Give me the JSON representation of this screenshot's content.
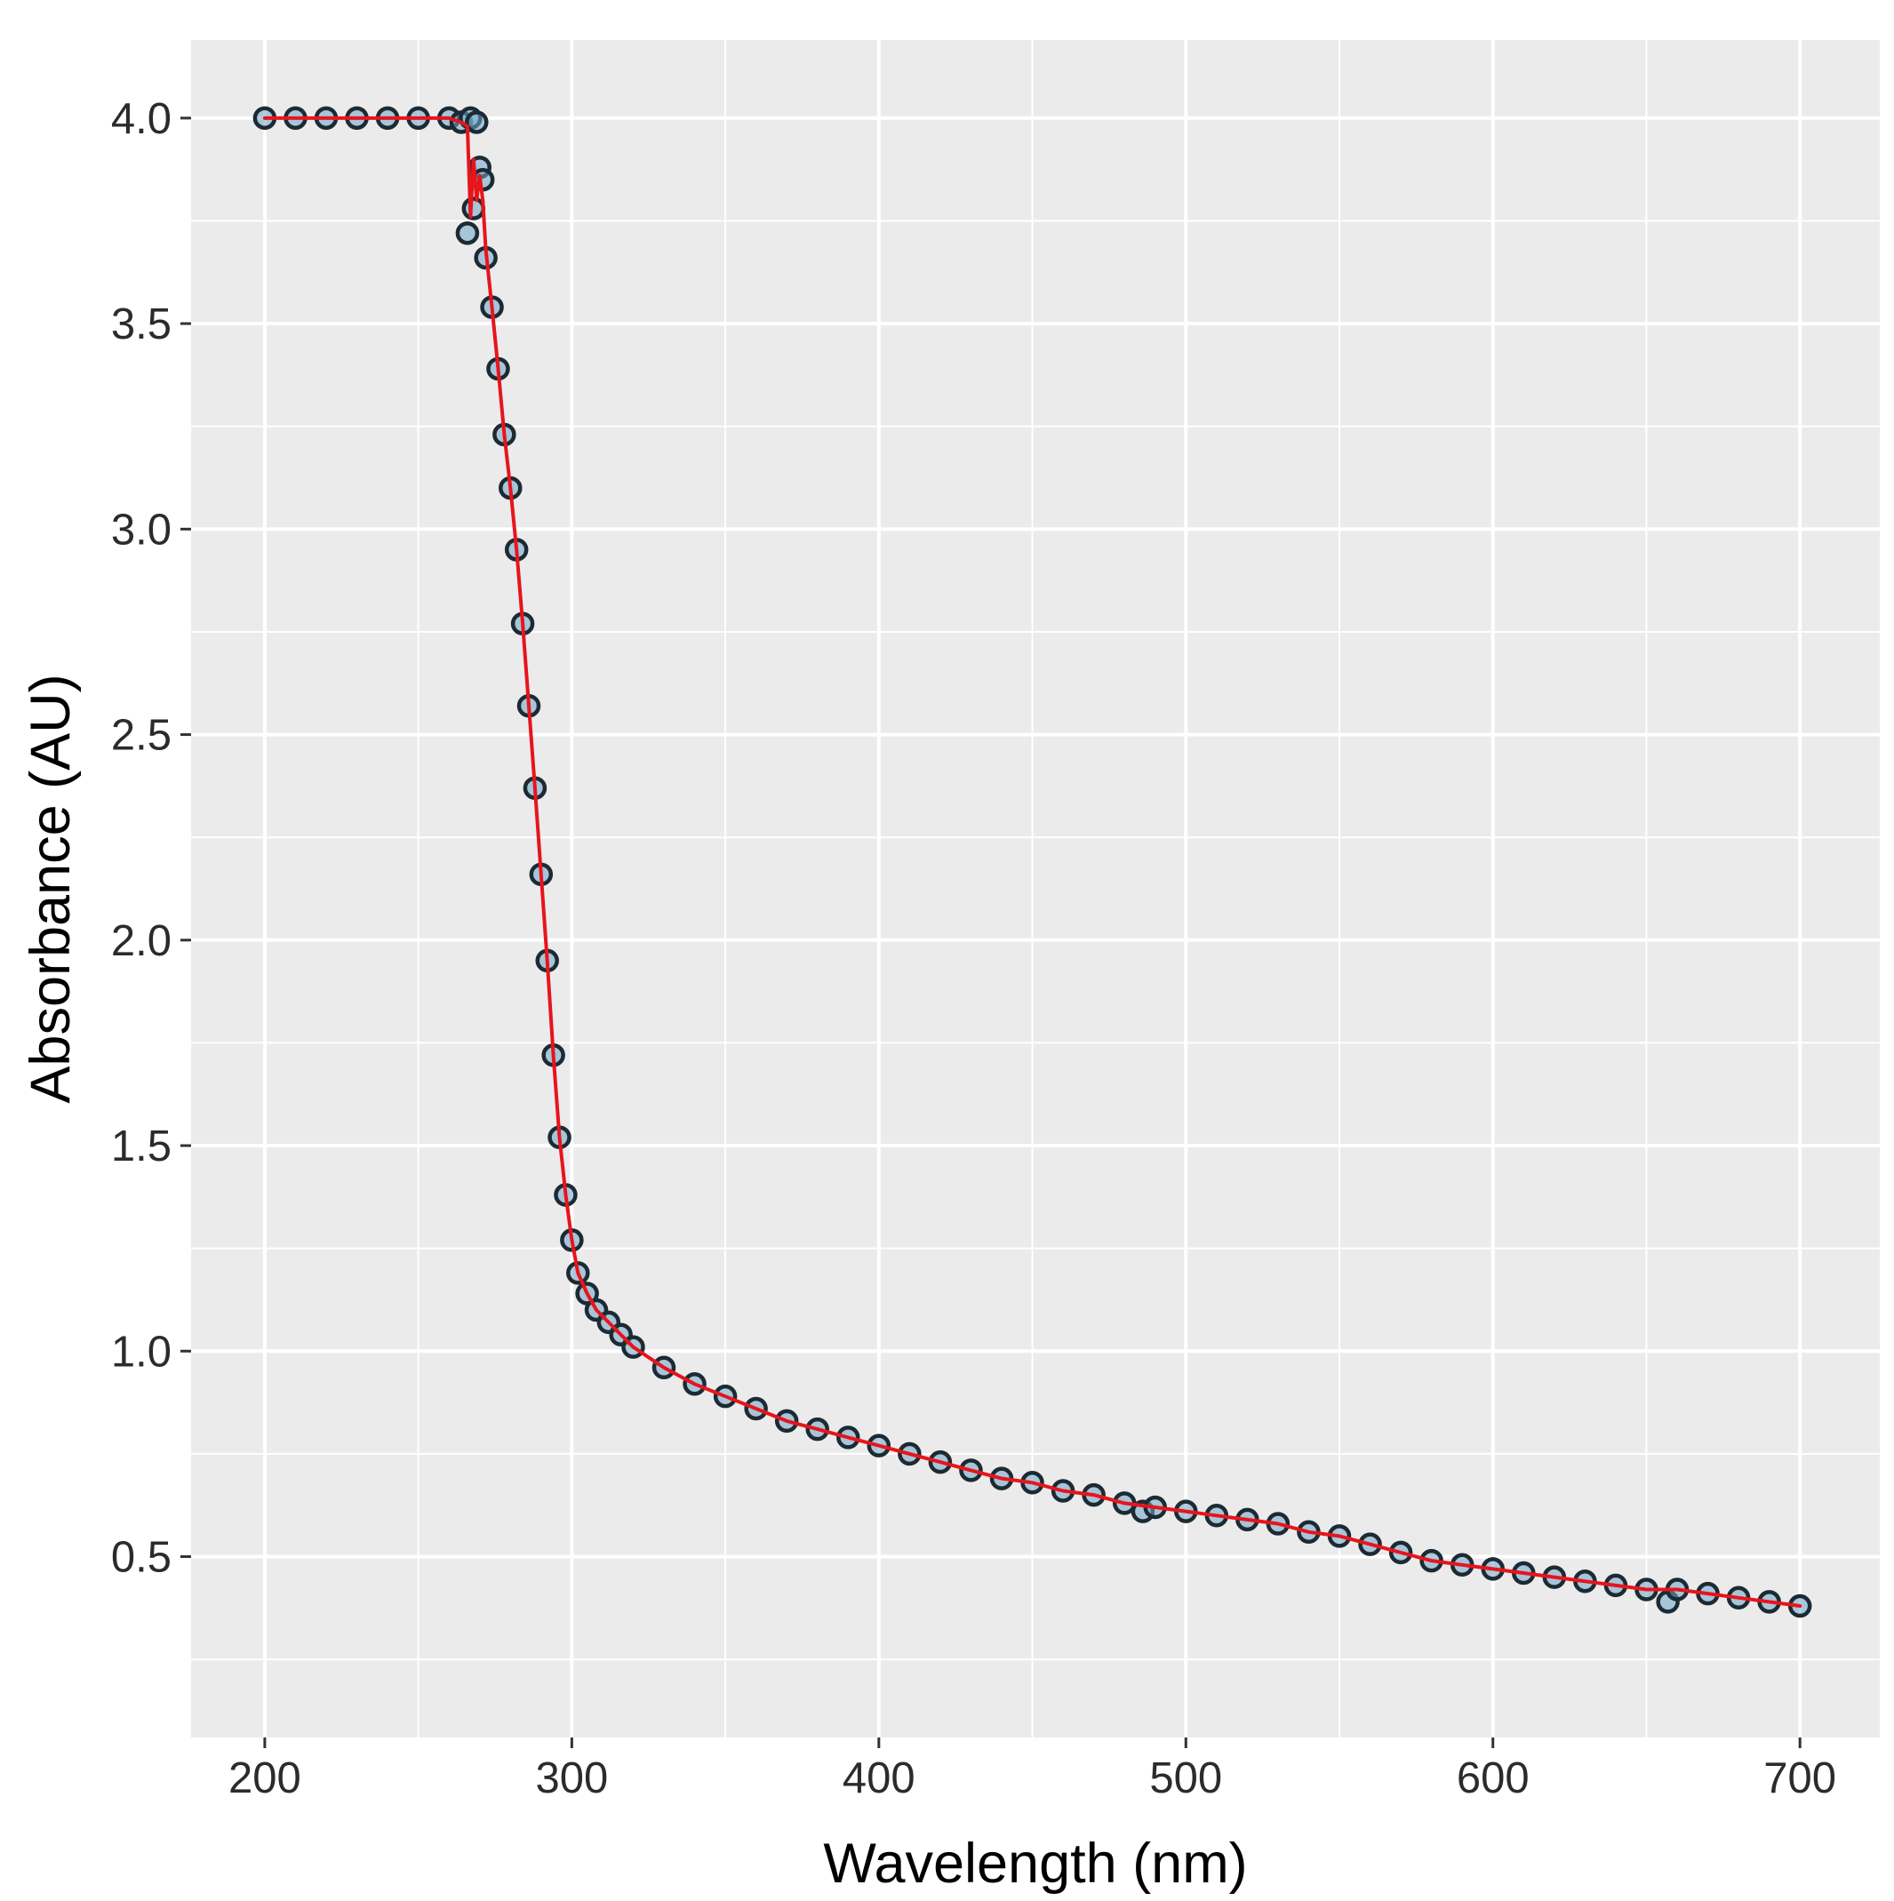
{
  "chart_data": {
    "type": "scatter",
    "xlabel": "Wavelength (nm)",
    "ylabel": "Absorbance (AU)",
    "xlim": [
      176,
      726
    ],
    "ylim": [
      0.06,
      4.19
    ],
    "xticks": [
      200,
      300,
      400,
      500,
      600,
      700
    ],
    "xtick_labels": [
      "200",
      "300",
      "400",
      "500",
      "600",
      "700"
    ],
    "yticks": [
      0.5,
      1.0,
      1.5,
      2.0,
      2.5,
      3.0,
      3.5,
      4.0
    ],
    "ytick_labels": [
      "0.5",
      "1.0",
      "1.5",
      "2.0",
      "2.5",
      "3.0",
      "3.5",
      "4.0"
    ],
    "grid": true,
    "legend": "none",
    "colors": {
      "panel_background": "#ebebeb",
      "grid_line": "#ffffff",
      "point_fill": "#6fa6c8",
      "point_stroke": "#1c2a33",
      "fit_line": "#e8141c"
    },
    "series": [
      {
        "style": "points",
        "x": [
          200,
          210,
          220,
          230,
          240,
          250,
          260,
          264,
          266,
          267,
          268,
          269,
          270,
          271,
          272,
          274,
          276,
          278,
          280,
          282,
          284,
          286,
          288,
          290,
          292,
          294,
          296,
          298,
          300,
          302,
          305,
          308,
          312,
          316,
          320,
          330,
          340,
          350,
          360,
          370,
          380,
          390,
          400,
          410,
          420,
          430,
          440,
          450,
          460,
          470,
          480,
          486,
          490,
          500,
          510,
          520,
          530,
          540,
          550,
          560,
          570,
          580,
          590,
          600,
          610,
          620,
          630,
          640,
          650,
          657,
          660,
          670,
          680,
          690,
          700
        ],
        "y": [
          4.0,
          4.0,
          4.0,
          4.0,
          4.0,
          4.0,
          4.0,
          3.99,
          3.72,
          4.0,
          3.78,
          3.99,
          3.88,
          3.85,
          3.66,
          3.54,
          3.39,
          3.23,
          3.1,
          2.95,
          2.77,
          2.57,
          2.37,
          2.16,
          1.95,
          1.72,
          1.52,
          1.38,
          1.27,
          1.19,
          1.14,
          1.1,
          1.07,
          1.04,
          1.01,
          0.96,
          0.92,
          0.89,
          0.86,
          0.83,
          0.81,
          0.79,
          0.77,
          0.75,
          0.73,
          0.71,
          0.69,
          0.68,
          0.66,
          0.65,
          0.63,
          0.61,
          0.62,
          0.61,
          0.6,
          0.59,
          0.58,
          0.56,
          0.55,
          0.53,
          0.51,
          0.49,
          0.48,
          0.47,
          0.46,
          0.45,
          0.44,
          0.43,
          0.42,
          0.39,
          0.42,
          0.41,
          0.4,
          0.39,
          0.38
        ]
      },
      {
        "style": "line",
        "x": [
          200,
          210,
          220,
          230,
          240,
          250,
          260,
          264,
          266,
          267,
          268,
          269,
          270,
          271,
          272,
          274,
          276,
          278,
          280,
          282,
          284,
          286,
          288,
          290,
          292,
          294,
          296,
          298,
          300,
          302,
          305,
          308,
          312,
          316,
          320,
          330,
          340,
          350,
          360,
          370,
          380,
          390,
          400,
          410,
          420,
          430,
          440,
          450,
          460,
          470,
          480,
          490,
          500,
          510,
          520,
          530,
          540,
          550,
          560,
          570,
          580,
          590,
          600,
          610,
          620,
          630,
          640,
          650,
          660,
          670,
          680,
          690,
          700
        ],
        "y": [
          4.0,
          4.0,
          4.0,
          4.0,
          4.0,
          4.0,
          4.0,
          3.99,
          3.98,
          3.76,
          3.9,
          3.8,
          3.86,
          3.8,
          3.68,
          3.54,
          3.39,
          3.23,
          3.1,
          2.95,
          2.77,
          2.57,
          2.37,
          2.16,
          1.95,
          1.72,
          1.52,
          1.38,
          1.27,
          1.19,
          1.14,
          1.1,
          1.07,
          1.04,
          1.01,
          0.96,
          0.92,
          0.89,
          0.86,
          0.83,
          0.81,
          0.79,
          0.77,
          0.75,
          0.73,
          0.71,
          0.69,
          0.68,
          0.66,
          0.65,
          0.63,
          0.62,
          0.61,
          0.6,
          0.59,
          0.58,
          0.56,
          0.55,
          0.53,
          0.51,
          0.49,
          0.48,
          0.47,
          0.46,
          0.45,
          0.44,
          0.43,
          0.42,
          0.42,
          0.41,
          0.4,
          0.39,
          0.38
        ]
      }
    ]
  }
}
